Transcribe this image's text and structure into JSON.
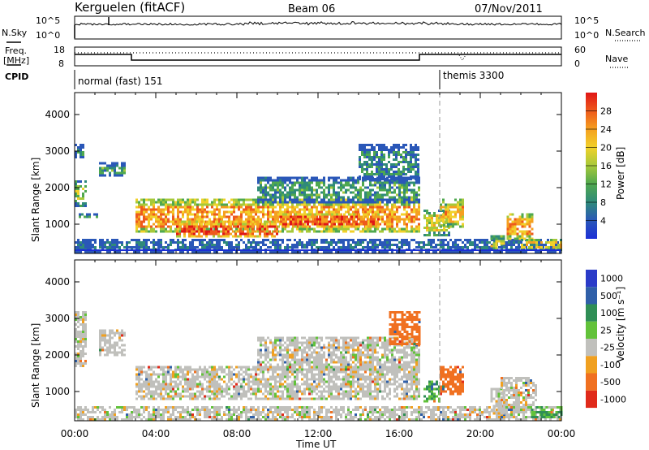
{
  "header": {
    "station": "Kerguelen (fitACF)",
    "beam": "Beam 06",
    "date": "07/Nov/2011"
  },
  "nsky_panel": {
    "left_label": "N.Sky",
    "right_label": "N.Search",
    "ticks": [
      "10^5",
      "10^0"
    ]
  },
  "freq_panel": {
    "left_label_1": "Freq.",
    "left_label_2": "[MHz]",
    "left_ticks": [
      "18",
      "8"
    ],
    "right_label": "Nave",
    "right_ticks": [
      "60",
      "0"
    ]
  },
  "cpid_panel": {
    "label": "CPID",
    "modes": [
      {
        "name": "normal (fast) 151",
        "start_hour": 0
      },
      {
        "name": "themis 3300",
        "start_hour": 18
      }
    ]
  },
  "chart_data": [
    {
      "type": "heatmap",
      "title": "",
      "xlabel": "Time UT",
      "ylabel": "Slant Range [km]",
      "xlim_hours": [
        0,
        24
      ],
      "ylim": [
        200,
        4600
      ],
      "yticks": [
        "1000",
        "2000",
        "3000",
        "4000"
      ],
      "xticks": [
        "00:00",
        "04:00",
        "08:00",
        "12:00",
        "16:00",
        "20:00",
        "00:00"
      ],
      "colorbar": {
        "label": "Power [dB]",
        "ticks": [
          "4",
          "8",
          "12",
          "16",
          "20",
          "24",
          "28"
        ],
        "colors": [
          "#1c2fd6",
          "#2a57b8",
          "#2f8a7a",
          "#4fa84f",
          "#a6c93a",
          "#f1d12a",
          "#f5a020",
          "#ee5a1c",
          "#e01616"
        ]
      },
      "bands": [
        {
          "t0": 0.0,
          "t1": 24.0,
          "r0": 250,
          "r1": 600,
          "value": 4
        },
        {
          "t0": 0.0,
          "t1": 0.4,
          "r0": 2800,
          "r1": 3200,
          "value": 8
        },
        {
          "t0": 0.0,
          "t1": 0.5,
          "r0": 1500,
          "r1": 2200,
          "value": 14
        },
        {
          "t0": 0.2,
          "t1": 1.2,
          "r0": 1200,
          "r1": 1300,
          "value": 10
        },
        {
          "t0": 1.2,
          "t1": 2.5,
          "r0": 2300,
          "r1": 2700,
          "value": 10
        },
        {
          "t0": 3.0,
          "t1": 17.0,
          "r0": 800,
          "r1": 1700,
          "value": 24
        },
        {
          "t0": 5.0,
          "t1": 10.0,
          "r0": 650,
          "r1": 1100,
          "value": 28
        },
        {
          "t0": 10.0,
          "t1": 15.0,
          "r0": 950,
          "r1": 1300,
          "value": 28
        },
        {
          "t0": 9.0,
          "t1": 17.0,
          "r0": 1600,
          "r1": 2300,
          "value": 10
        },
        {
          "t0": 14.0,
          "t1": 17.0,
          "r0": 2200,
          "r1": 3200,
          "value": 8
        },
        {
          "t0": 17.2,
          "t1": 18.5,
          "r0": 700,
          "r1": 1400,
          "value": 18
        },
        {
          "t0": 18.0,
          "t1": 19.2,
          "r0": 900,
          "r1": 1700,
          "value": 22
        },
        {
          "t0": 20.5,
          "t1": 21.2,
          "r0": 300,
          "r1": 700,
          "value": 20
        },
        {
          "t0": 21.3,
          "t1": 22.6,
          "r0": 600,
          "r1": 1300,
          "value": 24
        },
        {
          "t0": 22.0,
          "t1": 24.0,
          "r0": 300,
          "r1": 600,
          "value": 20
        }
      ]
    },
    {
      "type": "heatmap",
      "title": "",
      "xlabel": "Time UT",
      "ylabel": "Slant Range [km]",
      "xlim_hours": [
        0,
        24
      ],
      "ylim": [
        200,
        4600
      ],
      "yticks": [
        "1000",
        "2000",
        "3000",
        "4000"
      ],
      "xticks": [
        "00:00",
        "04:00",
        "08:00",
        "12:00",
        "16:00",
        "20:00",
        "00:00"
      ],
      "colorbar": {
        "label": "Velocity [m s⁻¹]",
        "ticks": [
          "1000",
          "500",
          "100",
          "25",
          "-25",
          "-100",
          "-500",
          "-1000"
        ],
        "colors": [
          "#2a3bc8",
          "#2f5fa8",
          "#2f8e55",
          "#62c23a",
          "#c0c0bc",
          "#f0a020",
          "#f07020",
          "#e02a1a"
        ]
      },
      "bands": [
        {
          "t0": 0.0,
          "t1": 24.0,
          "r0": 250,
          "r1": 600,
          "value": 0
        },
        {
          "t0": 0.0,
          "t1": 0.6,
          "r0": 1700,
          "r1": 3200,
          "value": 0
        },
        {
          "t0": 1.2,
          "t1": 2.5,
          "r0": 2000,
          "r1": 2700,
          "value": 0
        },
        {
          "t0": 3.0,
          "t1": 17.0,
          "r0": 800,
          "r1": 1700,
          "value": 0
        },
        {
          "t0": 9.0,
          "t1": 17.0,
          "r0": 1600,
          "r1": 2500,
          "value": 0
        },
        {
          "t0": 15.5,
          "t1": 17.0,
          "r0": 2300,
          "r1": 3200,
          "value": -200
        },
        {
          "t0": 17.2,
          "t1": 18.0,
          "r0": 700,
          "r1": 1300,
          "value": 60
        },
        {
          "t0": 18.0,
          "t1": 19.2,
          "r0": 900,
          "r1": 1700,
          "value": -200
        },
        {
          "t0": 20.5,
          "t1": 21.2,
          "r0": 400,
          "r1": 1100,
          "value": 0
        },
        {
          "t0": 21.0,
          "t1": 22.8,
          "r0": 500,
          "r1": 1400,
          "value": 0
        },
        {
          "t0": 22.5,
          "t1": 24.0,
          "r0": 300,
          "r1": 600,
          "value": 60
        }
      ]
    }
  ]
}
